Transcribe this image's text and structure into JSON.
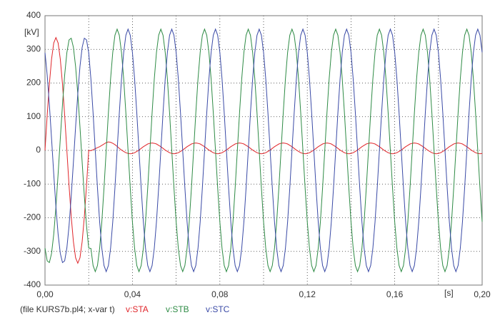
{
  "chart_data": {
    "type": "line",
    "y_label": "[kV]",
    "x_label": "[s]",
    "legend_prefix": "(file KURS7b.pl4; x-var t)",
    "xlim": [
      0,
      0.2
    ],
    "ylim": [
      -400,
      400
    ],
    "xticks": [
      {
        "value": 0,
        "label": "0,00"
      },
      {
        "value": 0.04,
        "label": "0,04"
      },
      {
        "value": 0.08,
        "label": "0,08"
      },
      {
        "value": 0.12,
        "label": "0,12"
      },
      {
        "value": 0.16,
        "label": "0,16"
      },
      {
        "value": 0.2,
        "label": "0,20"
      }
    ],
    "x_minor_ticks": [
      0.02,
      0.06,
      0.1,
      0.14,
      0.18
    ],
    "yticks": [
      -400,
      -300,
      -200,
      -100,
      0,
      100,
      200,
      300,
      400
    ],
    "grid": true,
    "x": [
      0,
      0.001,
      0.002,
      0.003,
      0.004,
      0.005,
      0.006,
      0.007,
      0.008,
      0.009,
      0.01,
      0.011,
      0.012,
      0.013,
      0.014,
      0.015,
      0.016,
      0.017,
      0.018,
      0.019,
      0.02,
      0.021,
      0.022,
      0.023,
      0.024,
      0.025,
      0.026,
      0.027,
      0.028,
      0.029,
      0.03,
      0.031,
      0.032,
      0.033,
      0.034,
      0.035,
      0.036,
      0.037,
      0.038,
      0.039,
      0.04,
      0.041,
      0.042,
      0.043,
      0.044,
      0.045,
      0.046,
      0.047,
      0.048,
      0.049,
      0.05,
      0.051,
      0.052,
      0.053,
      0.054,
      0.055,
      0.056,
      0.057,
      0.058,
      0.059,
      0.06,
      0.061,
      0.062,
      0.063,
      0.064,
      0.065,
      0.066,
      0.067,
      0.068,
      0.069,
      0.07,
      0.071,
      0.072,
      0.073,
      0.074,
      0.075,
      0.076,
      0.077,
      0.078,
      0.079,
      0.08,
      0.081,
      0.082,
      0.083,
      0.084,
      0.085,
      0.086,
      0.087,
      0.088,
      0.089,
      0.09,
      0.091,
      0.092,
      0.093,
      0.094,
      0.095,
      0.096,
      0.097,
      0.098,
      0.099,
      0.1,
      0.101,
      0.102,
      0.103,
      0.104,
      0.105,
      0.106,
      0.107,
      0.108,
      0.109,
      0.11,
      0.111,
      0.112,
      0.113,
      0.114,
      0.115,
      0.116,
      0.117,
      0.118,
      0.119,
      0.12,
      0.121,
      0.122,
      0.123,
      0.124,
      0.125,
      0.126,
      0.127,
      0.128,
      0.129,
      0.13,
      0.131,
      0.132,
      0.133,
      0.134,
      0.135,
      0.136,
      0.137,
      0.138,
      0.139,
      0.14,
      0.141,
      0.142,
      0.143,
      0.144,
      0.145,
      0.146,
      0.147,
      0.148,
      0.149,
      0.15,
      0.151,
      0.152,
      0.153,
      0.154,
      0.155,
      0.156,
      0.157,
      0.158,
      0.159,
      0.16,
      0.161,
      0.162,
      0.163,
      0.164,
      0.165,
      0.166,
      0.167,
      0.168,
      0.169,
      0.17,
      0.171,
      0.172,
      0.173,
      0.174,
      0.175,
      0.176,
      0.177,
      0.178,
      0.179,
      0.18,
      0.181,
      0.182,
      0.183,
      0.184,
      0.185,
      0.186,
      0.187,
      0.188,
      0.189,
      0.19,
      0.191,
      0.192,
      0.193,
      0.194,
      0.195,
      0.196,
      0.197,
      0.198,
      0.199,
      0.2
    ],
    "series": [
      {
        "name": "v:STA",
        "color": "#e0262b",
        "values": [
          0,
          104,
          197,
          271,
          319,
          335,
          319,
          271,
          197,
          104,
          0,
          -104,
          -197,
          -271,
          -319,
          -335,
          -319,
          -271,
          -197,
          -104,
          0,
          -1,
          2,
          5,
          8,
          11,
          15,
          19,
          23,
          25,
          24,
          21,
          17,
          12,
          6,
          1,
          -3,
          -7,
          -9,
          -10,
          -9,
          -7,
          -3,
          1,
          6,
          11,
          15,
          19,
          21,
          22,
          21,
          19,
          15,
          11,
          6,
          1,
          -3,
          -7,
          -9,
          -10,
          -9,
          -7,
          -3,
          1,
          6,
          11,
          15,
          19,
          21,
          22,
          21,
          19,
          15,
          11,
          6,
          1,
          -3,
          -7,
          -9,
          -10,
          -9,
          -7,
          -3,
          1,
          6,
          11,
          15,
          19,
          21,
          22,
          21,
          19,
          15,
          11,
          6,
          1,
          -3,
          -7,
          -9,
          -10,
          -9,
          -7,
          -3,
          1,
          6,
          11,
          15,
          19,
          21,
          22,
          21,
          19,
          15,
          11,
          6,
          1,
          -3,
          -7,
          -9,
          -10,
          -9,
          -7,
          -3,
          1,
          6,
          11,
          15,
          19,
          21,
          22,
          21,
          19,
          15,
          11,
          6,
          1,
          -3,
          -7,
          -9,
          -10,
          -9,
          -7,
          -3,
          1,
          6,
          11,
          15,
          19,
          21,
          22,
          21,
          19,
          15,
          11,
          6,
          1,
          -3,
          -7,
          -9,
          -10,
          -9,
          -7,
          -3,
          1,
          6,
          11,
          15,
          19,
          21,
          22,
          21,
          19,
          15,
          11,
          6,
          1,
          -3,
          -7,
          -9,
          -10,
          -9,
          -7,
          -3,
          1,
          6,
          11,
          15,
          19,
          21,
          22,
          21,
          19,
          15,
          11,
          6,
          1,
          -3,
          -7,
          -9,
          -10,
          -9
        ]
      },
      {
        "name": "v:STB",
        "color": "#2e8b45",
        "values": [
          -290,
          -328,
          -333,
          -306,
          -249,
          -168,
          -70,
          35,
          136,
          224,
          290,
          328,
          333,
          306,
          249,
          168,
          70,
          -35,
          -136,
          -224,
          -290,
          -291,
          -342,
          -360,
          -342,
          -291,
          -212,
          -111,
          0,
          111,
          212,
          291,
          342,
          360,
          342,
          291,
          212,
          111,
          0,
          -111,
          -212,
          -291,
          -342,
          -360,
          -342,
          -291,
          -212,
          -111,
          0,
          111,
          212,
          291,
          342,
          360,
          342,
          291,
          212,
          111,
          0,
          -111,
          -212,
          -291,
          -342,
          -360,
          -342,
          -291,
          -212,
          -111,
          0,
          111,
          212,
          291,
          342,
          360,
          342,
          291,
          212,
          111,
          0,
          -111,
          -212,
          -291,
          -342,
          -360,
          -342,
          -291,
          -212,
          -111,
          0,
          111,
          212,
          291,
          342,
          360,
          342,
          291,
          212,
          111,
          0,
          -111,
          -212,
          -291,
          -342,
          -360,
          -342,
          -291,
          -212,
          -111,
          0,
          111,
          212,
          291,
          342,
          360,
          342,
          291,
          212,
          111,
          0,
          -111,
          -212,
          -291,
          -342,
          -360,
          -342,
          -291,
          -212,
          -111,
          0,
          111,
          212,
          291,
          342,
          360,
          342,
          291,
          212,
          111,
          0,
          -111,
          -212,
          -291,
          -342,
          -360,
          -342,
          -291,
          -212,
          -111,
          0,
          111,
          212,
          291,
          342,
          360,
          342,
          291,
          212,
          111,
          0,
          -111,
          -212,
          -291,
          -342,
          -360,
          -342,
          -291,
          -212,
          -111,
          0,
          111,
          212,
          291,
          342,
          360,
          342,
          291,
          212,
          111,
          0,
          -111,
          -212,
          -291,
          -342,
          -360,
          -342,
          -291,
          -212,
          -111,
          0,
          111,
          212,
          291,
          342,
          360,
          342,
          291,
          212,
          111,
          0,
          -111,
          -212
        ]
      },
      {
        "name": "v:STC",
        "color": "#3a4aa6",
        "values": [
          290,
          224,
          136,
          35,
          -70,
          -168,
          -249,
          -306,
          -333,
          -328,
          -290,
          -224,
          -136,
          -35,
          70,
          168,
          249,
          306,
          333,
          328,
          290,
          212,
          111,
          0,
          -111,
          -212,
          -291,
          -342,
          -360,
          -342,
          -291,
          -212,
          -111,
          0,
          111,
          212,
          291,
          342,
          360,
          342,
          291,
          212,
          111,
          0,
          -111,
          -212,
          -291,
          -342,
          -360,
          -342,
          -291,
          -212,
          -111,
          0,
          111,
          212,
          291,
          342,
          360,
          342,
          291,
          212,
          111,
          0,
          -111,
          -212,
          -291,
          -342,
          -360,
          -342,
          -291,
          -212,
          -111,
          0,
          111,
          212,
          291,
          342,
          360,
          342,
          291,
          212,
          111,
          0,
          -111,
          -212,
          -291,
          -342,
          -360,
          -342,
          -291,
          -212,
          -111,
          0,
          111,
          212,
          291,
          342,
          360,
          342,
          291,
          212,
          111,
          0,
          -111,
          -212,
          -291,
          -342,
          -360,
          -342,
          -291,
          -212,
          -111,
          0,
          111,
          212,
          291,
          342,
          360,
          342,
          291,
          212,
          111,
          0,
          -111,
          -212,
          -291,
          -342,
          -360,
          -342,
          -291,
          -212,
          -111,
          0,
          111,
          212,
          291,
          342,
          360,
          342,
          291,
          212,
          111,
          0,
          -111,
          -212,
          -291,
          -342,
          -360,
          -342,
          -291,
          -212,
          -111,
          0,
          111,
          212,
          291,
          342,
          360,
          342,
          291,
          212,
          111,
          0,
          -111,
          -212,
          -291,
          -342,
          -360,
          -342,
          -291,
          -212,
          -111,
          0,
          111,
          212,
          291,
          342,
          360,
          342,
          291,
          212,
          111,
          0,
          -111,
          -212,
          -291,
          -342,
          -360,
          -342,
          -291,
          -212,
          -111,
          0,
          111,
          212,
          291,
          342,
          360,
          342,
          291
        ]
      }
    ]
  }
}
